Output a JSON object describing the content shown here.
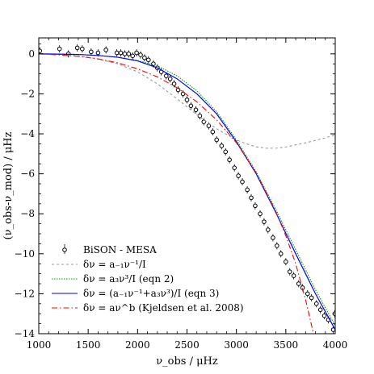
{
  "chart_data": {
    "type": "line",
    "xlabel": "ν_obs / μHz",
    "ylabel": "(ν_obs-ν_mod) / μHz",
    "xlim": [
      1000,
      4000
    ],
    "ylim": [
      -14,
      0.8
    ],
    "xticks": [
      1000,
      1500,
      2000,
      2500,
      3000,
      3500,
      4000
    ],
    "yticks": [
      0,
      -2,
      -4,
      -6,
      -8,
      -10,
      -12,
      -14
    ],
    "xtick_labels": [
      "1000",
      "1500",
      "2000",
      "2500",
      "3000",
      "3500",
      "4000"
    ],
    "ytick_labels": [
      "0",
      "−2",
      "−4",
      "−6",
      "−8",
      "−10",
      "−12",
      "−14"
    ],
    "legend_position": "lower-left",
    "series": [
      {
        "name": "BiSON - MESA",
        "style": "points",
        "color": "#000000",
        "x": [
          1010,
          1210,
          1300,
          1390,
          1440,
          1530,
          1600,
          1680,
          1790,
          1830,
          1870,
          1910,
          1950,
          1990,
          2030,
          2070,
          2110,
          2160,
          2200,
          2240,
          2290,
          2330,
          2370,
          2410,
          2460,
          2500,
          2540,
          2590,
          2630,
          2670,
          2720,
          2760,
          2800,
          2850,
          2890,
          2930,
          2980,
          3020,
          3060,
          3110,
          3150,
          3190,
          3240,
          3280,
          3320,
          3370,
          3410,
          3450,
          3500,
          3540,
          3580,
          3630,
          3670,
          3720,
          3760,
          3810,
          3850,
          3890,
          3930,
          3980,
          3995
        ],
        "y": [
          0.15,
          0.25,
          0.0,
          0.3,
          0.25,
          0.1,
          0.05,
          0.2,
          0.05,
          0.05,
          0.0,
          0.0,
          -0.1,
          0.05,
          -0.05,
          -0.2,
          -0.3,
          -0.5,
          -0.7,
          -0.9,
          -1.1,
          -1.25,
          -1.5,
          -1.8,
          -2.0,
          -2.3,
          -2.6,
          -2.8,
          -3.1,
          -3.4,
          -3.6,
          -3.9,
          -4.3,
          -4.6,
          -4.9,
          -5.3,
          -5.7,
          -6.1,
          -6.4,
          -6.8,
          -7.2,
          -7.6,
          -8.0,
          -8.4,
          -8.8,
          -9.2,
          -9.6,
          -10.0,
          -10.4,
          -10.9,
          -11.1,
          -11.5,
          -11.7,
          -12.0,
          -12.2,
          -12.5,
          -12.8,
          -13.1,
          -13.3,
          -13.8,
          -13.0
        ],
        "yerr": 0.05
      },
      {
        "name": "δν = a₋₁ν⁻¹/I",
        "style": "dashed",
        "color": "#999999",
        "x": [
          1000,
          1200,
          1400,
          1600,
          1800,
          2000,
          2200,
          2400,
          2600,
          2800,
          3000,
          3100,
          3200,
          3300,
          3400,
          3500,
          3600,
          3700,
          3800,
          3900,
          4000
        ],
        "y": [
          0,
          -0.03,
          -0.1,
          -0.25,
          -0.5,
          -0.9,
          -1.5,
          -2.25,
          -3.05,
          -3.75,
          -4.3,
          -4.5,
          -4.65,
          -4.72,
          -4.72,
          -4.66,
          -4.55,
          -4.45,
          -4.33,
          -4.2,
          -4.05
        ]
      },
      {
        "name": "δν = a₃ν³/I (eqn 2)",
        "style": "dotted",
        "color": "#009900",
        "x": [
          1000,
          1200,
          1400,
          1600,
          1800,
          2000,
          2200,
          2400,
          2600,
          2800,
          3000,
          3200,
          3400,
          3600,
          3800,
          4000
        ],
        "y": [
          0,
          -0.01,
          -0.03,
          -0.08,
          -0.17,
          -0.33,
          -0.6,
          -1.1,
          -1.85,
          -2.9,
          -4.3,
          -5.9,
          -7.8,
          -9.8,
          -11.8,
          -13.6
        ]
      },
      {
        "name": "δν = (a₋₁ν⁻¹+a₃ν³)/I  (eqn 3)",
        "style": "solid",
        "color": "#0000ff",
        "x": [
          1000,
          1200,
          1400,
          1600,
          1800,
          2000,
          2200,
          2400,
          2600,
          2800,
          3000,
          3200,
          3400,
          3600,
          3800,
          4000
        ],
        "y": [
          0,
          -0.01,
          -0.03,
          -0.08,
          -0.17,
          -0.35,
          -0.7,
          -1.25,
          -2.0,
          -3.0,
          -4.4,
          -6.0,
          -7.95,
          -10.0,
          -12.0,
          -13.8
        ]
      },
      {
        "name": "δν = aν^b (Kjeldsen et al. 2008)",
        "style": "dashdot",
        "color": "#ff0000",
        "x": [
          1000,
          1200,
          1400,
          1600,
          1800,
          2000,
          2200,
          2400,
          2600,
          2800,
          3000,
          3200,
          3400,
          3500,
          3600,
          3700,
          3780
        ],
        "y": [
          0,
          -0.05,
          -0.12,
          -0.25,
          -0.45,
          -0.75,
          -1.15,
          -1.7,
          -2.4,
          -3.3,
          -4.45,
          -5.95,
          -7.9,
          -9.1,
          -10.5,
          -12.3,
          -14.0
        ]
      }
    ]
  }
}
